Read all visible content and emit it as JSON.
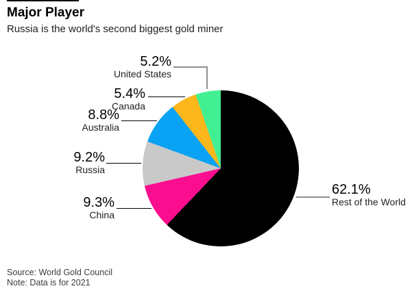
{
  "header": {
    "title": "Major Player",
    "subtitle": "Russia is the world's second biggest gold miner"
  },
  "footer": {
    "source": "Source: World Gold Council",
    "note": "Note: Data is for 2021"
  },
  "chart_data": {
    "type": "pie",
    "title": "Major Player",
    "subtitle": "Russia is the world's second biggest gold miner",
    "unit": "%",
    "legend_position": "callout-labels",
    "start_angle_deg": 0,
    "direction": "clockwise",
    "categories": [
      "Rest of the World",
      "China",
      "Russia",
      "Australia",
      "Canada",
      "United States"
    ],
    "values": [
      62.1,
      9.3,
      9.2,
      8.8,
      5.4,
      5.2
    ],
    "slices": [
      {
        "label": "United States",
        "value": 5.2,
        "pct": "5.2%",
        "color": "#42ef92"
      },
      {
        "label": "Canada",
        "value": 5.4,
        "pct": "5.4%",
        "color": "#fdb71b"
      },
      {
        "label": "Australia",
        "value": 8.8,
        "pct": "8.8%",
        "color": "#0aa2f5"
      },
      {
        "label": "Russia",
        "value": 9.2,
        "pct": "9.2%",
        "color": "#c9c9c9"
      },
      {
        "label": "China",
        "value": 9.3,
        "pct": "9.3%",
        "color": "#fb0d90"
      },
      {
        "label": "Rest of the World",
        "value": 62.1,
        "pct": "62.1%",
        "color": "#000000"
      }
    ],
    "draw_order_clockwise_from_top": [
      5,
      4,
      3,
      2,
      1,
      0
    ],
    "colors": {
      "black": "#000000",
      "magenta": "#fb0d90",
      "gray": "#c9c9c9",
      "azure": "#0aa2f5",
      "amber": "#fdb71b",
      "mint": "#42ef92",
      "leader_gray": "#8f8f8f"
    }
  }
}
